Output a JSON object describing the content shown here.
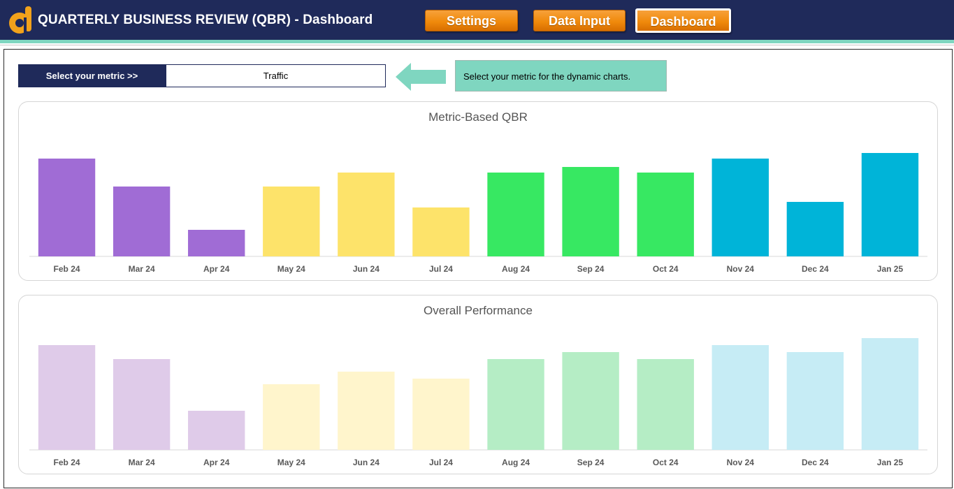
{
  "app": {
    "title": "QUARTERLY BUSINESS REVIEW (QBR) - Dashboard",
    "logo_icon": "orange-d-logo-icon"
  },
  "nav": {
    "settings_label": "Settings",
    "data_input_label": "Data Input",
    "dashboard_label": "Dashboard"
  },
  "selector": {
    "label": "Select your metric >>",
    "value": "Traffic",
    "hint": "Select your metric for the dynamic charts."
  },
  "colors": {
    "navy": "#1f2a5a",
    "accent": "#f08a0c",
    "teal": "#7fd6c0",
    "q_purple": "#a06cd5",
    "q_yellow": "#fde36a",
    "q_green": "#37e862",
    "q_blue": "#00b4d8"
  },
  "chart_data": [
    {
      "type": "bar",
      "title": "Metric-Based QBR",
      "categories": [
        "Feb 24",
        "Mar 24",
        "Apr 24",
        "May 24",
        "Jun 24",
        "Jul 24",
        "Aug 24",
        "Sep 24",
        "Oct 24",
        "Nov 24",
        "Dec 24",
        "Jan 25"
      ],
      "values": [
        70,
        50,
        19,
        50,
        60,
        35,
        60,
        64,
        60,
        70,
        39,
        74
      ],
      "bar_colors": [
        "#a06cd5",
        "#a06cd5",
        "#a06cd5",
        "#fde36a",
        "#fde36a",
        "#fde36a",
        "#37e862",
        "#37e862",
        "#37e862",
        "#00b4d8",
        "#00b4d8",
        "#00b4d8"
      ],
      "ylim": [
        0,
        80
      ],
      "xlabel": "",
      "ylabel": "",
      "legend": "none",
      "grid": false
    },
    {
      "type": "bar",
      "title": "Overall Performance",
      "categories": [
        "Feb 24",
        "Mar 24",
        "Apr 24",
        "May 24",
        "Jun 24",
        "Jul 24",
        "Aug 24",
        "Sep 24",
        "Oct 24",
        "Nov 24",
        "Dec 24",
        "Jan 25"
      ],
      "values": [
        75,
        65,
        28,
        47,
        56,
        51,
        65,
        70,
        65,
        75,
        70,
        80
      ],
      "bar_colors": [
        "#dfcbe9",
        "#dfcbe9",
        "#dfcbe9",
        "#fff5cc",
        "#fff5cc",
        "#fff5cc",
        "#b5edc5",
        "#b5edc5",
        "#b5edc5",
        "#c6ecf5",
        "#c6ecf5",
        "#c6ecf5"
      ],
      "ylim": [
        0,
        80
      ],
      "xlabel": "",
      "ylabel": "",
      "legend": "none",
      "grid": false
    }
  ]
}
